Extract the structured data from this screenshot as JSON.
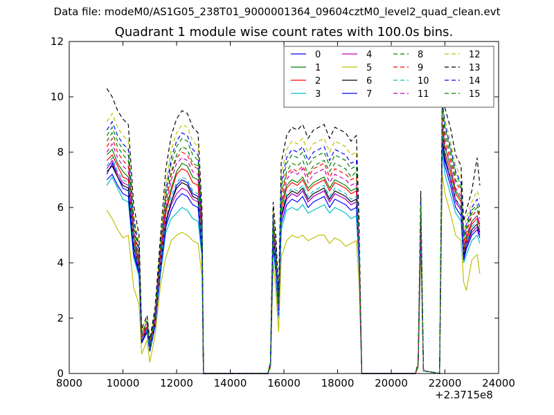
{
  "figure": {
    "suptitle": "Data file: modeM0/AS1G05_238T01_9000001364_09604cztM0_level2_quad_clean.evt",
    "title": "Quadrant 1 module wise count rates with 100.0s bins.",
    "x_offset_label": "+2.3715e8"
  },
  "chart_data": {
    "type": "line",
    "title": "Quadrant 1 module wise count rates with 100.0s bins.",
    "xlabel": "",
    "ylabel": "",
    "xlim": [
      8000,
      24000
    ],
    "ylim": [
      0,
      12
    ],
    "x_ticks": [
      8000,
      10000,
      12000,
      14000,
      16000,
      18000,
      20000,
      22000,
      24000
    ],
    "y_ticks": [
      0,
      2,
      4,
      6,
      8,
      10,
      12
    ],
    "x_offset": "+2.3715e8",
    "grid": false,
    "legend": {
      "placement": "top-right",
      "columns": 4
    },
    "x": [
      9400,
      9600,
      9800,
      10000,
      10200,
      10400,
      10600,
      10700,
      10900,
      11000,
      11200,
      11400,
      11600,
      11800,
      12000,
      12200,
      12400,
      12600,
      12800,
      12950,
      13000,
      15400,
      15500,
      15600,
      15700,
      15800,
      15900,
      16100,
      16300,
      16500,
      16700,
      16900,
      17100,
      17300,
      17500,
      17700,
      17900,
      18100,
      18300,
      18500,
      18700,
      18800,
      18900,
      20900,
      21000,
      21100,
      21200,
      21800,
      21900,
      22000,
      22200,
      22400,
      22600,
      22700,
      22800,
      23000,
      23200,
      23300
    ],
    "series": [
      {
        "name": "0",
        "color": "#0000ff",
        "style": "solid",
        "values": [
          7.2,
          7.6,
          7.1,
          6.7,
          6.6,
          4.4,
          3.7,
          1.2,
          1.6,
          0.9,
          1.8,
          3.8,
          5.4,
          6.2,
          6.8,
          7.0,
          6.9,
          6.5,
          6.4,
          4.5,
          0,
          0,
          0.3,
          4.8,
          3.8,
          2.2,
          5.6,
          6.3,
          6.5,
          6.4,
          6.6,
          6.2,
          6.4,
          6.5,
          6.6,
          6.2,
          6.5,
          6.4,
          6.3,
          6.1,
          6.2,
          4.2,
          0,
          0,
          0.3,
          5.3,
          0.1,
          0,
          8.5,
          7.7,
          7.0,
          6.2,
          5.9,
          4.2,
          4.6,
          5.1,
          5.3,
          5.0
        ]
      },
      {
        "name": "1",
        "color": "#008000",
        "style": "solid",
        "values": [
          7.9,
          8.1,
          7.6,
          7.3,
          7.1,
          5.0,
          4.0,
          1.3,
          1.7,
          1.0,
          2.0,
          4.2,
          5.9,
          6.7,
          7.3,
          7.6,
          7.5,
          7.1,
          7.0,
          4.8,
          0,
          0,
          0.3,
          5.1,
          4.1,
          2.4,
          6.1,
          6.8,
          7.0,
          6.9,
          7.1,
          6.7,
          6.9,
          7.0,
          7.1,
          6.7,
          7.0,
          6.9,
          6.8,
          6.6,
          6.7,
          4.5,
          0,
          0,
          0.3,
          5.6,
          0.1,
          0,
          9.0,
          8.2,
          7.5,
          6.6,
          6.3,
          4.5,
          4.9,
          5.5,
          5.7,
          5.4
        ]
      },
      {
        "name": "2",
        "color": "#ff0000",
        "style": "solid",
        "values": [
          7.7,
          7.9,
          7.5,
          7.1,
          7.0,
          4.8,
          3.9,
          1.2,
          1.7,
          0.9,
          1.9,
          4.1,
          5.8,
          6.6,
          7.2,
          7.4,
          7.3,
          6.9,
          6.8,
          4.7,
          0,
          0,
          0.3,
          5.0,
          4.0,
          2.3,
          5.9,
          6.7,
          6.9,
          6.8,
          7.0,
          6.6,
          6.8,
          6.9,
          7.0,
          6.6,
          6.9,
          6.8,
          6.7,
          6.5,
          6.6,
          4.4,
          0,
          0,
          0.3,
          5.5,
          0.1,
          0,
          8.8,
          8.0,
          7.3,
          6.5,
          6.2,
          4.4,
          4.8,
          5.4,
          5.6,
          5.3
        ]
      },
      {
        "name": "3",
        "color": "#00bfbf",
        "style": "solid",
        "values": [
          6.8,
          7.1,
          6.7,
          6.3,
          6.2,
          4.2,
          3.5,
          1.1,
          1.5,
          0.8,
          1.7,
          3.6,
          5.1,
          5.6,
          5.8,
          6.0,
          5.9,
          5.6,
          5.5,
          4.2,
          0,
          0,
          0.3,
          4.5,
          3.6,
          2.0,
          5.2,
          5.9,
          6.0,
          5.9,
          6.1,
          5.8,
          5.9,
          6.0,
          6.1,
          5.8,
          6.0,
          5.9,
          5.8,
          5.6,
          5.7,
          3.9,
          0,
          0,
          0.3,
          5.0,
          0.1,
          0,
          8.0,
          7.2,
          6.5,
          5.8,
          5.5,
          4.0,
          4.3,
          4.8,
          5.0,
          4.7
        ]
      },
      {
        "name": "4",
        "color": "#bf00bf",
        "style": "solid",
        "values": [
          7.4,
          7.7,
          7.2,
          6.9,
          6.8,
          4.6,
          3.8,
          1.2,
          1.6,
          0.9,
          1.8,
          3.9,
          5.5,
          6.1,
          6.5,
          6.7,
          6.6,
          6.3,
          6.2,
          4.5,
          0,
          0,
          0.3,
          4.8,
          3.9,
          2.2,
          5.6,
          6.3,
          6.5,
          6.4,
          6.6,
          6.2,
          6.4,
          6.5,
          6.6,
          6.2,
          6.5,
          6.4,
          6.3,
          6.1,
          6.2,
          4.2,
          0,
          0,
          0.3,
          5.3,
          0.1,
          0,
          8.6,
          7.8,
          7.0,
          6.2,
          5.9,
          4.3,
          4.6,
          5.1,
          5.3,
          5.0
        ]
      },
      {
        "name": "5",
        "color": "#bfbf00",
        "style": "solid",
        "values": [
          5.9,
          5.6,
          5.2,
          4.9,
          5.0,
          3.1,
          2.5,
          0.7,
          1.2,
          0.4,
          1.4,
          3.2,
          4.2,
          4.8,
          5.0,
          5.1,
          5.0,
          4.8,
          4.7,
          3.5,
          0,
          0,
          0.2,
          4.0,
          3.0,
          1.5,
          4.2,
          4.8,
          5.0,
          4.9,
          5.0,
          4.8,
          4.9,
          5.0,
          5.0,
          4.7,
          4.9,
          4.8,
          4.6,
          4.7,
          4.8,
          3.3,
          0,
          0,
          0.2,
          4.5,
          0.1,
          0,
          7.2,
          6.5,
          5.8,
          5.0,
          4.8,
          3.3,
          3.0,
          4.1,
          4.3,
          3.6
        ]
      },
      {
        "name": "6",
        "color": "#000000",
        "style": "solid",
        "values": [
          7.3,
          7.5,
          7.1,
          6.8,
          6.7,
          4.6,
          3.8,
          1.1,
          1.6,
          0.9,
          1.8,
          3.9,
          5.5,
          6.2,
          6.7,
          6.9,
          6.8,
          6.4,
          6.3,
          4.5,
          0,
          0,
          0.3,
          4.9,
          3.9,
          2.2,
          5.7,
          6.4,
          6.6,
          6.5,
          6.7,
          6.3,
          6.5,
          6.6,
          6.7,
          6.3,
          6.6,
          6.5,
          6.4,
          6.2,
          6.3,
          4.3,
          0,
          0,
          0.3,
          5.4,
          0.1,
          0,
          8.6,
          7.8,
          7.1,
          6.3,
          6.0,
          4.3,
          4.7,
          5.2,
          5.4,
          5.1
        ]
      },
      {
        "name": "7",
        "color": "#0000ff",
        "style": "solid",
        "values": [
          7.0,
          7.2,
          6.8,
          6.5,
          6.4,
          4.3,
          3.6,
          1.1,
          1.5,
          0.8,
          1.7,
          3.7,
          5.3,
          5.9,
          6.3,
          6.5,
          6.4,
          6.1,
          6.0,
          4.3,
          0,
          0,
          0.3,
          4.7,
          3.7,
          2.1,
          5.4,
          6.1,
          6.3,
          6.2,
          6.4,
          6.0,
          6.2,
          6.3,
          6.4,
          6.0,
          6.3,
          6.2,
          6.1,
          5.9,
          6.0,
          4.1,
          0,
          0,
          0.3,
          5.2,
          0.1,
          0,
          8.3,
          7.5,
          6.8,
          6.0,
          5.7,
          4.1,
          4.5,
          5.0,
          5.2,
          4.9
        ]
      },
      {
        "name": "8",
        "color": "#008000",
        "style": "dashed",
        "values": [
          8.4,
          8.7,
          8.2,
          7.9,
          7.7,
          5.3,
          4.3,
          1.4,
          1.8,
          1.0,
          2.1,
          4.4,
          6.3,
          7.3,
          7.9,
          8.2,
          8.1,
          7.6,
          7.5,
          5.1,
          0,
          0,
          0.4,
          5.4,
          4.3,
          2.5,
          6.5,
          7.3,
          7.6,
          7.5,
          7.7,
          7.2,
          7.5,
          7.6,
          7.7,
          7.3,
          7.6,
          7.5,
          7.4,
          7.1,
          7.3,
          4.8,
          0,
          0,
          0.3,
          5.9,
          0.1,
          0,
          9.5,
          8.7,
          7.9,
          7.0,
          6.7,
          4.8,
          5.2,
          5.8,
          6.0,
          5.7
        ]
      },
      {
        "name": "9",
        "color": "#ff0000",
        "style": "dashed",
        "values": [
          8.2,
          8.5,
          8.0,
          7.7,
          7.5,
          5.2,
          4.2,
          1.3,
          1.8,
          1.0,
          2.0,
          4.3,
          6.2,
          7.2,
          7.8,
          8.0,
          7.9,
          7.5,
          7.4,
          5.0,
          0,
          0,
          0.4,
          5.3,
          4.2,
          2.4,
          6.4,
          7.2,
          7.4,
          7.3,
          7.5,
          7.1,
          7.4,
          7.5,
          7.6,
          7.1,
          7.4,
          7.3,
          7.2,
          7.0,
          7.1,
          4.7,
          0,
          0,
          0.3,
          5.8,
          0.1,
          0,
          9.3,
          8.5,
          7.7,
          6.9,
          6.6,
          4.7,
          5.1,
          5.7,
          5.9,
          5.6
        ]
      },
      {
        "name": "10",
        "color": "#00bfbf",
        "style": "dashed",
        "values": [
          7.5,
          7.8,
          7.3,
          7.0,
          6.9,
          4.7,
          3.8,
          1.2,
          1.6,
          0.9,
          1.8,
          3.9,
          5.6,
          6.4,
          6.9,
          7.1,
          7.0,
          6.6,
          6.5,
          4.6,
          0,
          0,
          0.3,
          4.9,
          3.9,
          2.2,
          5.8,
          6.5,
          6.7,
          6.6,
          6.8,
          6.4,
          6.6,
          6.7,
          6.8,
          6.4,
          6.7,
          6.6,
          6.5,
          6.3,
          6.4,
          4.3,
          0,
          0,
          0.3,
          5.4,
          0.1,
          0,
          8.7,
          7.9,
          7.1,
          6.3,
          6.0,
          4.4,
          4.7,
          5.3,
          5.5,
          5.2
        ]
      },
      {
        "name": "11",
        "color": "#bf00bf",
        "style": "dashed",
        "values": [
          8.0,
          8.3,
          7.8,
          7.5,
          7.3,
          5.1,
          4.1,
          1.3,
          1.7,
          1.0,
          1.9,
          4.2,
          6.0,
          7.0,
          7.6,
          7.8,
          7.7,
          7.3,
          7.2,
          4.9,
          0,
          0,
          0.3,
          5.2,
          4.1,
          2.4,
          6.2,
          7.0,
          7.3,
          7.2,
          7.4,
          6.9,
          7.2,
          7.3,
          7.4,
          6.9,
          7.2,
          7.1,
          7.0,
          6.8,
          6.9,
          4.6,
          0,
          0,
          0.3,
          5.7,
          0.1,
          0,
          9.1,
          8.3,
          7.5,
          6.7,
          6.4,
          4.6,
          5.0,
          5.5,
          5.7,
          5.4
        ]
      },
      {
        "name": "12",
        "color": "#bfbf00",
        "style": "dashed",
        "values": [
          9.1,
          9.4,
          8.9,
          8.6,
          8.4,
          5.8,
          4.7,
          1.5,
          2.0,
          1.1,
          2.3,
          4.8,
          6.9,
          8.1,
          8.7,
          9.0,
          8.9,
          8.4,
          8.2,
          5.6,
          0,
          0,
          0.4,
          5.9,
          4.7,
          2.7,
          7.2,
          8.1,
          8.4,
          8.3,
          8.5,
          8.0,
          8.3,
          8.4,
          8.5,
          8.0,
          8.4,
          8.3,
          8.2,
          7.9,
          8.0,
          5.3,
          0,
          0,
          0.4,
          6.4,
          0.1,
          0,
          9.7,
          9.2,
          8.4,
          7.5,
          7.1,
          5.2,
          5.6,
          6.2,
          6.6,
          6.3
        ]
      },
      {
        "name": "13",
        "color": "#000000",
        "style": "dashed",
        "values": [
          10.3,
          10.0,
          9.5,
          9.2,
          9.0,
          6.1,
          5.0,
          1.6,
          2.1,
          1.2,
          2.4,
          5.0,
          7.4,
          8.6,
          9.2,
          9.5,
          9.4,
          8.9,
          8.7,
          5.9,
          0,
          0,
          0.4,
          6.2,
          5.0,
          2.9,
          7.6,
          8.6,
          8.9,
          8.8,
          9.0,
          8.5,
          8.8,
          8.9,
          9.0,
          8.5,
          8.9,
          8.8,
          8.7,
          8.4,
          8.6,
          5.6,
          0,
          0,
          0.4,
          6.6,
          0.1,
          0,
          10.0,
          9.6,
          8.9,
          7.9,
          7.5,
          5.5,
          5.9,
          6.6,
          7.8,
          6.8
        ]
      },
      {
        "name": "14",
        "color": "#0000ff",
        "style": "dashed",
        "values": [
          8.8,
          9.1,
          8.6,
          8.3,
          8.1,
          5.6,
          4.5,
          1.4,
          1.9,
          1.0,
          2.2,
          4.6,
          6.6,
          7.8,
          8.4,
          8.7,
          8.6,
          8.1,
          7.9,
          5.4,
          0,
          0,
          0.4,
          5.7,
          4.5,
          2.6,
          6.9,
          7.8,
          8.1,
          8.0,
          8.2,
          7.7,
          8.0,
          8.1,
          8.2,
          7.7,
          8.1,
          8.0,
          7.9,
          7.6,
          7.7,
          5.1,
          0,
          0,
          0.4,
          6.2,
          0.1,
          0,
          9.9,
          9.0,
          8.2,
          7.3,
          6.9,
          5.0,
          5.4,
          6.0,
          6.3,
          6.0
        ]
      },
      {
        "name": "15",
        "color": "#008000",
        "style": "dashed",
        "values": [
          8.6,
          8.9,
          8.4,
          8.1,
          7.9,
          5.4,
          4.4,
          1.4,
          1.9,
          1.0,
          2.1,
          4.5,
          6.5,
          7.6,
          8.2,
          8.5,
          8.4,
          7.9,
          7.7,
          5.3,
          0,
          0,
          0.4,
          5.6,
          4.4,
          2.5,
          6.7,
          7.6,
          7.9,
          7.8,
          8.0,
          7.5,
          7.8,
          7.9,
          8.0,
          7.5,
          7.9,
          7.8,
          7.7,
          7.4,
          7.5,
          5.0,
          0,
          0,
          0.4,
          6.1,
          0.1,
          0,
          9.7,
          8.9,
          8.1,
          7.2,
          6.8,
          4.9,
          5.3,
          5.9,
          6.1,
          5.8
        ]
      }
    ]
  }
}
